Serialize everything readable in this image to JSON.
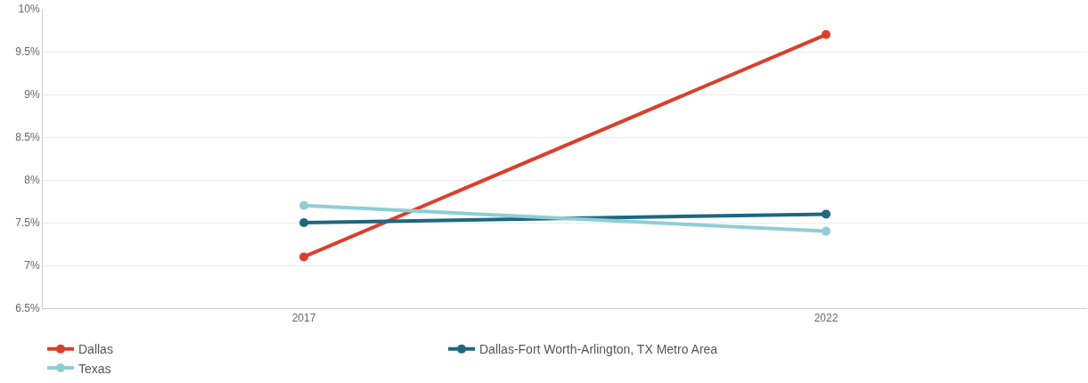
{
  "chart_data": {
    "type": "line",
    "categories": [
      "2017",
      "2022"
    ],
    "series": [
      {
        "name": "Dallas",
        "color": "#d9402b",
        "values": [
          7.1,
          9.7
        ]
      },
      {
        "name": "Dallas-Fort Worth-Arlington, TX Metro Area",
        "color": "#1e6780",
        "values": [
          7.5,
          7.6
        ]
      },
      {
        "name": "Texas",
        "color": "#8fcdd6",
        "values": [
          7.7,
          7.4
        ]
      }
    ],
    "ylim": [
      6.5,
      10
    ],
    "yticks": [
      {
        "value": 6.5,
        "label": "6.5%"
      },
      {
        "value": 7,
        "label": "7%"
      },
      {
        "value": 7.5,
        "label": "7.5%"
      },
      {
        "value": 8,
        "label": "8%"
      },
      {
        "value": 8.5,
        "label": "8.5%"
      },
      {
        "value": 9,
        "label": "9%"
      },
      {
        "value": 9.5,
        "label": "9.5%"
      },
      {
        "value": 10,
        "label": "10%"
      }
    ],
    "grid": "y",
    "legend": "bottom",
    "marker": "circle",
    "line_style": "solid"
  }
}
